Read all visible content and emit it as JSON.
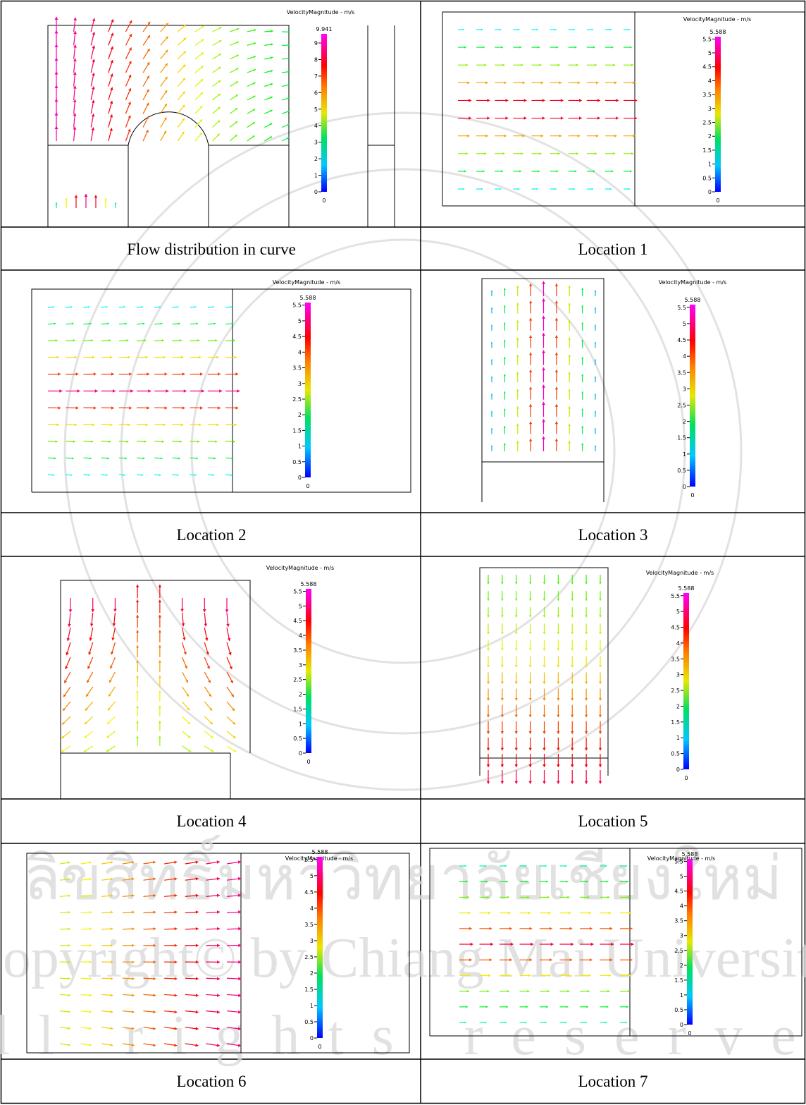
{
  "watermark": {
    "thai": "ลิขสิทธิ์มหาวิทยาลัยเชียงใหม่",
    "copyright": "Copyright© by Chiang Mai University",
    "rights": "All rights reserved"
  },
  "panels": [
    {
      "legend_title": "VelocityMagnitude - m/s",
      "max_label": "9.941",
      "ticks": [
        "9",
        "8",
        "7",
        "6",
        "5",
        "4",
        "3",
        "2",
        "1",
        "0"
      ],
      "min_label": "0",
      "caption": "Flow distribution in curve"
    },
    {
      "legend_title": "VelocityMagnitude - m/s",
      "max_label": "5.588",
      "ticks": [
        "5.5",
        "5",
        "4.5",
        "4",
        "3.5",
        "3",
        "2.5",
        "2",
        "1.5",
        "1",
        "0.5",
        "0"
      ],
      "min_label": "0",
      "caption": "Location 1"
    },
    {
      "legend_title": "VelocityMagnitude - m/s",
      "max_label": "5.588",
      "ticks": [
        "5.5",
        "5",
        "4.5",
        "4",
        "3.5",
        "3",
        "2.5",
        "2",
        "1.5",
        "1",
        "0.5",
        "0"
      ],
      "min_label": "0",
      "caption": "Location 2"
    },
    {
      "legend_title": "VelocityMagnitude - m/s",
      "max_label": "5.588",
      "ticks": [
        "5.5",
        "5",
        "4.5",
        "4",
        "3.5",
        "3",
        "2.5",
        "2",
        "1.5",
        "1",
        "0.5",
        "0"
      ],
      "min_label": "0",
      "caption": "Location 3"
    },
    {
      "legend_title": "VelocityMagnitude - m/s",
      "max_label": "5.588",
      "ticks": [
        "5.5",
        "5",
        "4.5",
        "4",
        "3.5",
        "3",
        "2.5",
        "2",
        "1.5",
        "1",
        "0.5",
        "0"
      ],
      "min_label": "0",
      "caption": "Location 4"
    },
    {
      "legend_title": "VelocityMagnitude - m/s",
      "max_label": "5.588",
      "ticks": [
        "5.5",
        "5",
        "4.5",
        "4",
        "3.5",
        "3",
        "2.5",
        "2",
        "1.5",
        "1",
        "0.5",
        "0"
      ],
      "min_label": "0",
      "caption": "Location 5"
    },
    {
      "legend_title": "VelocityMagnitude - m/s",
      "max_label": "5.588",
      "ticks": [
        "5.5",
        "5",
        "4.5",
        "4",
        "3.5",
        "3",
        "2.5",
        "2",
        "1.5",
        "1",
        "0.5",
        "0"
      ],
      "min_label": "0",
      "caption": "Location 6"
    },
    {
      "legend_title": "VelocityMagnitude - m/s",
      "max_label": "5.588",
      "ticks": [
        "5.5",
        "5",
        "4.5",
        "4",
        "3.5",
        "3",
        "2.5",
        "2",
        "1.5",
        "1",
        "0.5",
        "0"
      ],
      "min_label": "0",
      "caption": "Location 7"
    }
  ]
}
